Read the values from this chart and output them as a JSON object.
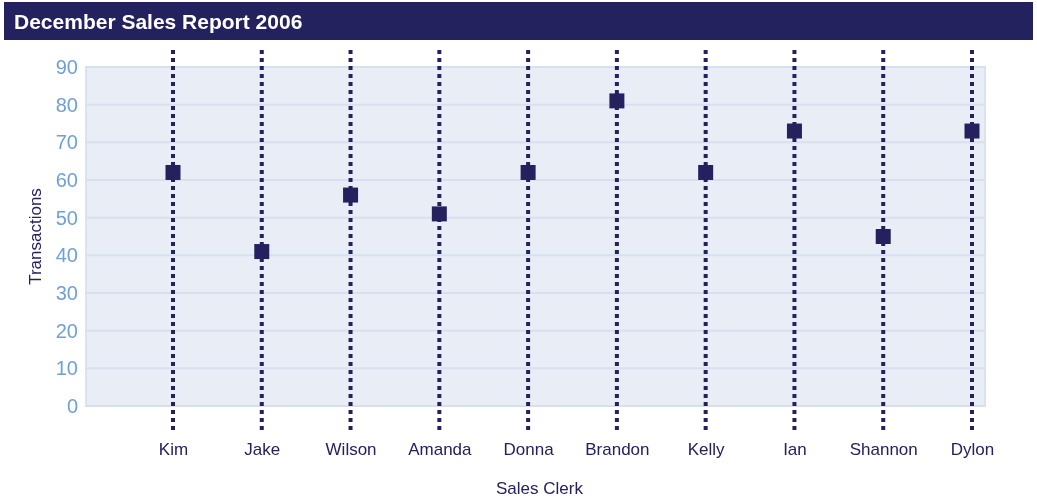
{
  "chart_data": {
    "type": "scatter",
    "title": "December Sales Report 2006",
    "xlabel": "Sales Clerk",
    "ylabel": "Transactions",
    "categories": [
      "Kim",
      "Jake",
      "Wilson",
      "Amanda",
      "Donna",
      "Brandon",
      "Kelly",
      "Ian",
      "Shannon",
      "Dylon"
    ],
    "series": [
      {
        "color": "#23215e",
        "values": [
          62,
          41,
          56,
          51,
          62,
          81,
          62,
          73,
          45,
          73
        ]
      }
    ],
    "ylim": [
      0,
      90
    ],
    "yticks": [
      0,
      10,
      20,
      30,
      40,
      50,
      60,
      70,
      80,
      90
    ],
    "grid": true,
    "marker": "square"
  }
}
